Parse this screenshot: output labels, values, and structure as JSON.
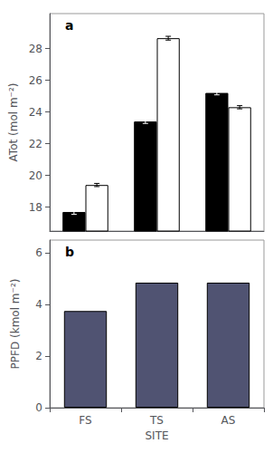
{
  "chart_data": [
    {
      "type": "bar",
      "annotation": "a",
      "ylabel": "ATot (mol m⁻²)",
      "categories": [
        "FS",
        "TS",
        "AS"
      ],
      "series": [
        {
          "color": "black",
          "values": [
            17.7,
            23.4,
            25.2
          ],
          "errors": [
            0.15,
            0.12,
            0.12
          ]
        },
        {
          "color": "white",
          "values": [
            19.4,
            28.65,
            24.3
          ],
          "errors": [
            0.1,
            0.12,
            0.1
          ]
        }
      ],
      "ylim": [
        16.5,
        30.2
      ],
      "yticks": [
        18,
        20,
        22,
        24,
        26,
        28
      ],
      "grid": false,
      "tick_labels": "y"
    },
    {
      "type": "bar",
      "annotation": "b",
      "xlabel": "SITE",
      "ylabel": "PPFD (kmol m⁻²)",
      "categories": [
        "FS",
        "TS",
        "AS"
      ],
      "values": [
        3.75,
        4.85,
        4.85
      ],
      "ylim": [
        0,
        6.5
      ],
      "yticks": [
        0,
        2,
        4,
        6
      ],
      "grid": false
    }
  ]
}
